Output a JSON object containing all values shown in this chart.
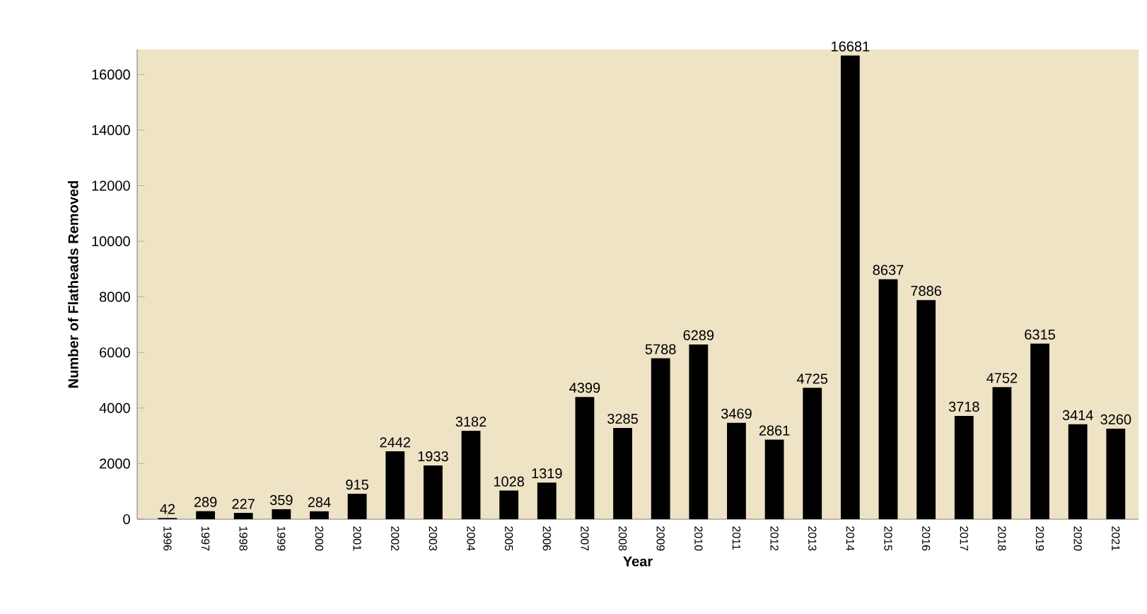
{
  "chart_data": {
    "type": "bar",
    "xlabel": "Year",
    "ylabel": "Number of Flatheads Removed",
    "categories": [
      "1996",
      "1997",
      "1998",
      "1999",
      "2000",
      "2001",
      "2002",
      "2003",
      "2004",
      "2005",
      "2006",
      "2007",
      "2008",
      "2009",
      "2010",
      "2011",
      "2012",
      "2013",
      "2014",
      "2015",
      "2016",
      "2017",
      "2018",
      "2019",
      "2020",
      "2021"
    ],
    "values": [
      42,
      289,
      227,
      359,
      284,
      915,
      2442,
      1933,
      3182,
      1028,
      1319,
      4399,
      3285,
      5788,
      6289,
      3469,
      2861,
      4725,
      16681,
      8637,
      7886,
      3718,
      4752,
      6315,
      3414,
      3260
    ],
    "color": "#000000",
    "data_labels": true,
    "grid": false,
    "ylim": [
      0,
      16900
    ],
    "yticks": [
      0,
      2000,
      4000,
      6000,
      8000,
      10000,
      12000,
      14000,
      16000
    ]
  }
}
